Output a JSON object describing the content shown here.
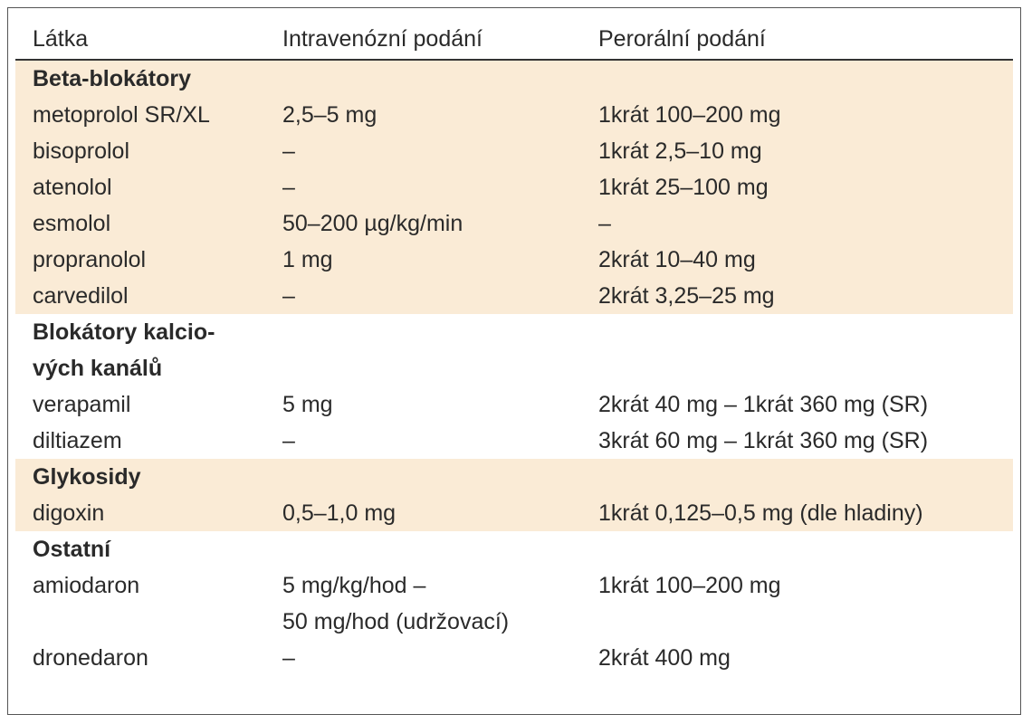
{
  "header": {
    "columns": [
      "Látka",
      "Intravenózní podání",
      "Perorální podání"
    ]
  },
  "groups": [
    {
      "title": [
        "Beta-blokátory"
      ],
      "shaded": true,
      "rows": [
        [
          "metoprolol SR/XL",
          "2,5–5 mg",
          "1krát 100–200 mg"
        ],
        [
          "bisoprolol",
          "–",
          "1krát 2,5–10 mg"
        ],
        [
          "atenolol",
          "–",
          "1krát 25–100 mg"
        ],
        [
          "esmolol",
          "50–200 µg/kg/min",
          "–"
        ],
        [
          "propranolol",
          "1 mg",
          "2krát 10–40 mg"
        ],
        [
          "carvedilol",
          "–",
          "2krát 3,25–25 mg"
        ]
      ]
    },
    {
      "title": [
        "Blokátory kalcio-",
        "vých kanálů"
      ],
      "shaded": false,
      "rows": [
        [
          "verapamil",
          "5 mg",
          "2krát 40 mg – 1krát 360 mg (SR)"
        ],
        [
          "diltiazem",
          "–",
          "3krát 60 mg – 1krát 360 mg (SR)"
        ]
      ]
    },
    {
      "title": [
        "Glykosidy"
      ],
      "shaded": true,
      "rows": [
        [
          "digoxin",
          "0,5–1,0 mg",
          "1krát 0,125–0,5 mg (dle hladiny)"
        ]
      ]
    },
    {
      "title": [
        "Ostatní"
      ],
      "shaded": false,
      "rows": [
        [
          "amiodaron",
          [
            "5 mg/kg/hod –",
            "50 mg/hod (udržovací)"
          ],
          "1krát 100–200 mg"
        ],
        [
          "dronedaron",
          "–",
          "2krát 400 mg"
        ]
      ]
    }
  ]
}
